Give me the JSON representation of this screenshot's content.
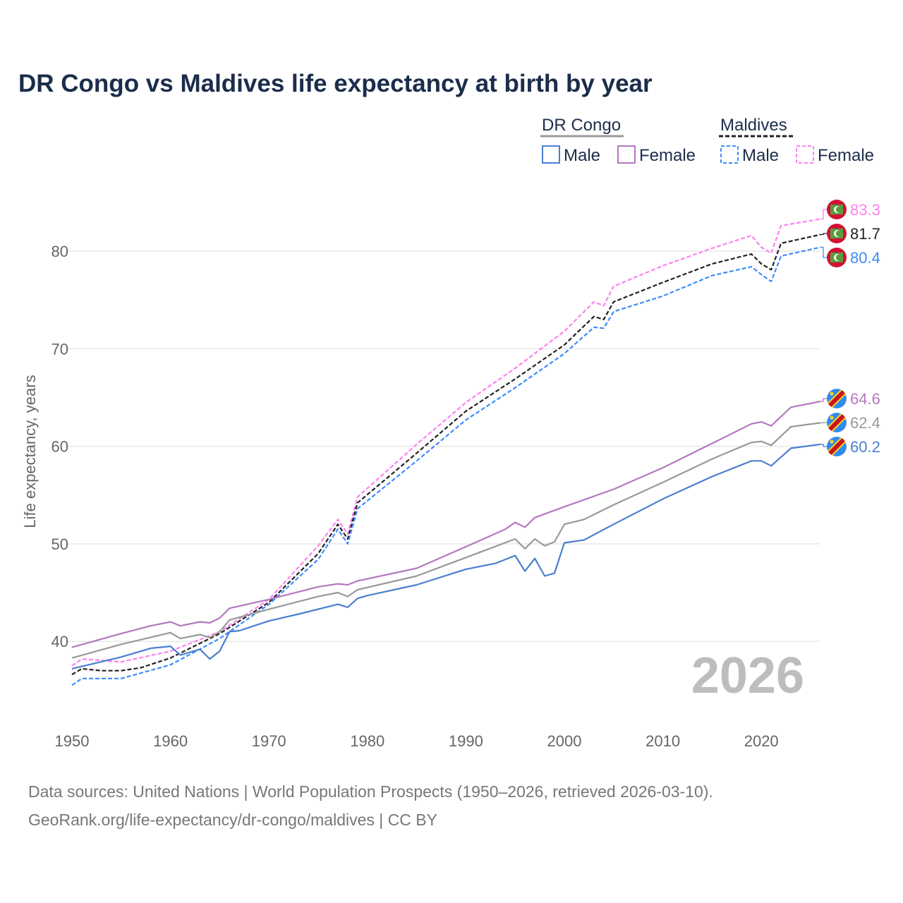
{
  "chart_data": {
    "type": "line",
    "title": "DR Congo vs Maldives life expectancy at birth by year",
    "xlabel": "",
    "ylabel": "Life expectancy, years",
    "xlim": [
      1950,
      2026
    ],
    "ylim": [
      32,
      86
    ],
    "x_ticks": [
      "1950",
      "1960",
      "1970",
      "1980",
      "1990",
      "2000",
      "2010",
      "2020"
    ],
    "y_ticks": [
      "40",
      "50",
      "60",
      "70",
      "80"
    ],
    "grid": "horizontal",
    "watermark_year": "2026",
    "legend": {
      "groups": [
        {
          "name": "DR Congo",
          "items": [
            "Male",
            "Female"
          ]
        },
        {
          "name": "Maldives",
          "items": [
            "Male",
            "Female"
          ]
        }
      ],
      "placement": "top-right"
    },
    "series": [
      {
        "name": "Maldives Female",
        "country": "Maldives",
        "color": "#ff80f0",
        "dashed": true,
        "end_label": "83.3",
        "points": [
          [
            1950,
            37.5
          ],
          [
            1951,
            38.2
          ],
          [
            1955,
            37.9
          ],
          [
            1960,
            39.0
          ],
          [
            1965,
            41.0
          ],
          [
            1970,
            44.3
          ],
          [
            1975,
            49.8
          ],
          [
            1977,
            52.5
          ],
          [
            1978,
            51.0
          ],
          [
            1979,
            54.8
          ],
          [
            1985,
            60.2
          ],
          [
            1990,
            64.5
          ],
          [
            1995,
            68.0
          ],
          [
            2000,
            71.8
          ],
          [
            2003,
            74.8
          ],
          [
            2004,
            74.4
          ],
          [
            2005,
            76.4
          ],
          [
            2010,
            78.5
          ],
          [
            2015,
            80.3
          ],
          [
            2019,
            81.6
          ],
          [
            2020,
            80.4
          ],
          [
            2021,
            79.8
          ],
          [
            2022,
            82.6
          ],
          [
            2026,
            83.3
          ]
        ]
      },
      {
        "name": "Maldives",
        "country": "Maldives",
        "color": "#222222",
        "dashed": true,
        "end_label": "81.7",
        "points": [
          [
            1950,
            36.6
          ],
          [
            1951,
            37.2
          ],
          [
            1953,
            37.0
          ],
          [
            1955,
            37.0
          ],
          [
            1957,
            37.3
          ],
          [
            1960,
            38.3
          ],
          [
            1965,
            40.8
          ],
          [
            1970,
            44.0
          ],
          [
            1975,
            49.0
          ],
          [
            1977,
            52.0
          ],
          [
            1978,
            50.5
          ],
          [
            1979,
            54.2
          ],
          [
            1985,
            59.3
          ],
          [
            1990,
            63.6
          ],
          [
            1995,
            66.9
          ],
          [
            2000,
            70.4
          ],
          [
            2003,
            73.3
          ],
          [
            2004,
            73.0
          ],
          [
            2005,
            74.8
          ],
          [
            2010,
            76.8
          ],
          [
            2015,
            78.7
          ],
          [
            2019,
            79.7
          ],
          [
            2020,
            78.7
          ],
          [
            2021,
            78.1
          ],
          [
            2022,
            80.8
          ],
          [
            2026,
            81.7
          ]
        ]
      },
      {
        "name": "Maldives Male",
        "country": "Maldives",
        "color": "#3d8bff",
        "dashed": true,
        "end_label": "80.4",
        "points": [
          [
            1950,
            35.5
          ],
          [
            1951,
            36.2
          ],
          [
            1955,
            36.2
          ],
          [
            1960,
            37.6
          ],
          [
            1965,
            40.3
          ],
          [
            1970,
            43.8
          ],
          [
            1975,
            48.4
          ],
          [
            1977,
            51.5
          ],
          [
            1978,
            50.0
          ],
          [
            1979,
            53.6
          ],
          [
            1985,
            58.5
          ],
          [
            1990,
            62.7
          ],
          [
            1995,
            66.0
          ],
          [
            2000,
            69.5
          ],
          [
            2003,
            72.2
          ],
          [
            2004,
            72.1
          ],
          [
            2005,
            73.8
          ],
          [
            2010,
            75.4
          ],
          [
            2015,
            77.5
          ],
          [
            2019,
            78.4
          ],
          [
            2020,
            77.6
          ],
          [
            2021,
            76.9
          ],
          [
            2022,
            79.5
          ],
          [
            2026,
            80.4
          ]
        ]
      },
      {
        "name": "DR Congo Female",
        "country": "DR Congo",
        "color": "#b578c0",
        "dashed": false,
        "end_label": "64.6",
        "points": [
          [
            1950,
            39.4
          ],
          [
            1955,
            40.8
          ],
          [
            1958,
            41.6
          ],
          [
            1960,
            42.0
          ],
          [
            1961,
            41.6
          ],
          [
            1963,
            42.0
          ],
          [
            1964,
            41.9
          ],
          [
            1965,
            42.4
          ],
          [
            1966,
            43.4
          ],
          [
            1970,
            44.3
          ],
          [
            1975,
            45.6
          ],
          [
            1977,
            45.9
          ],
          [
            1978,
            45.8
          ],
          [
            1979,
            46.2
          ],
          [
            1985,
            47.5
          ],
          [
            1990,
            49.7
          ],
          [
            1994,
            51.5
          ],
          [
            1995,
            52.2
          ],
          [
            1996,
            51.7
          ],
          [
            1997,
            52.7
          ],
          [
            2000,
            53.8
          ],
          [
            2005,
            55.6
          ],
          [
            2010,
            57.8
          ],
          [
            2015,
            60.3
          ],
          [
            2019,
            62.3
          ],
          [
            2020,
            62.5
          ],
          [
            2021,
            62.1
          ],
          [
            2023,
            64.0
          ],
          [
            2026,
            64.6
          ]
        ]
      },
      {
        "name": "DR Congo",
        "country": "DR Congo",
        "color": "#999999",
        "dashed": false,
        "end_label": "62.4",
        "points": [
          [
            1950,
            38.3
          ],
          [
            1955,
            39.7
          ],
          [
            1960,
            40.9
          ],
          [
            1961,
            40.3
          ],
          [
            1963,
            40.7
          ],
          [
            1964,
            40.4
          ],
          [
            1965,
            41.0
          ],
          [
            1966,
            42.2
          ],
          [
            1970,
            43.3
          ],
          [
            1975,
            44.6
          ],
          [
            1977,
            45.0
          ],
          [
            1978,
            44.6
          ],
          [
            1979,
            45.3
          ],
          [
            1985,
            46.7
          ],
          [
            1990,
            48.6
          ],
          [
            1995,
            50.5
          ],
          [
            1996,
            49.5
          ],
          [
            1997,
            50.5
          ],
          [
            1998,
            49.8
          ],
          [
            1999,
            50.2
          ],
          [
            2000,
            52.0
          ],
          [
            2002,
            52.5
          ],
          [
            2005,
            54.0
          ],
          [
            2010,
            56.3
          ],
          [
            2015,
            58.7
          ],
          [
            2019,
            60.4
          ],
          [
            2020,
            60.5
          ],
          [
            2021,
            60.1
          ],
          [
            2023,
            62.0
          ],
          [
            2026,
            62.4
          ]
        ]
      },
      {
        "name": "DR Congo Male",
        "country": "DR Congo",
        "color": "#4a7fcf",
        "dashed": false,
        "end_label": "60.2",
        "points": [
          [
            1950,
            37.2
          ],
          [
            1955,
            38.4
          ],
          [
            1958,
            39.3
          ],
          [
            1960,
            39.5
          ],
          [
            1961,
            38.6
          ],
          [
            1963,
            39.2
          ],
          [
            1964,
            38.2
          ],
          [
            1965,
            39.0
          ],
          [
            1966,
            41.0
          ],
          [
            1967,
            41.1
          ],
          [
            1970,
            42.1
          ],
          [
            1973,
            42.8
          ],
          [
            1977,
            43.8
          ],
          [
            1978,
            43.5
          ],
          [
            1979,
            44.4
          ],
          [
            1980,
            44.7
          ],
          [
            1985,
            45.8
          ],
          [
            1990,
            47.4
          ],
          [
            1993,
            48.0
          ],
          [
            1995,
            48.8
          ],
          [
            1996,
            47.2
          ],
          [
            1997,
            48.5
          ],
          [
            1998,
            46.7
          ],
          [
            1999,
            47.0
          ],
          [
            2000,
            50.1
          ],
          [
            2002,
            50.4
          ],
          [
            2005,
            52.0
          ],
          [
            2010,
            54.6
          ],
          [
            2015,
            56.9
          ],
          [
            2019,
            58.5
          ],
          [
            2020,
            58.5
          ],
          [
            2021,
            58.0
          ],
          [
            2023,
            59.8
          ],
          [
            2026,
            60.2
          ]
        ]
      }
    ]
  },
  "footer": {
    "line1": "Data sources: United Nations | World Population Prospects (1950–2026, retrieved 2026-03-10).",
    "line2": "GeoRank.org/life-expectancy/dr-congo/maldives | CC BY"
  }
}
